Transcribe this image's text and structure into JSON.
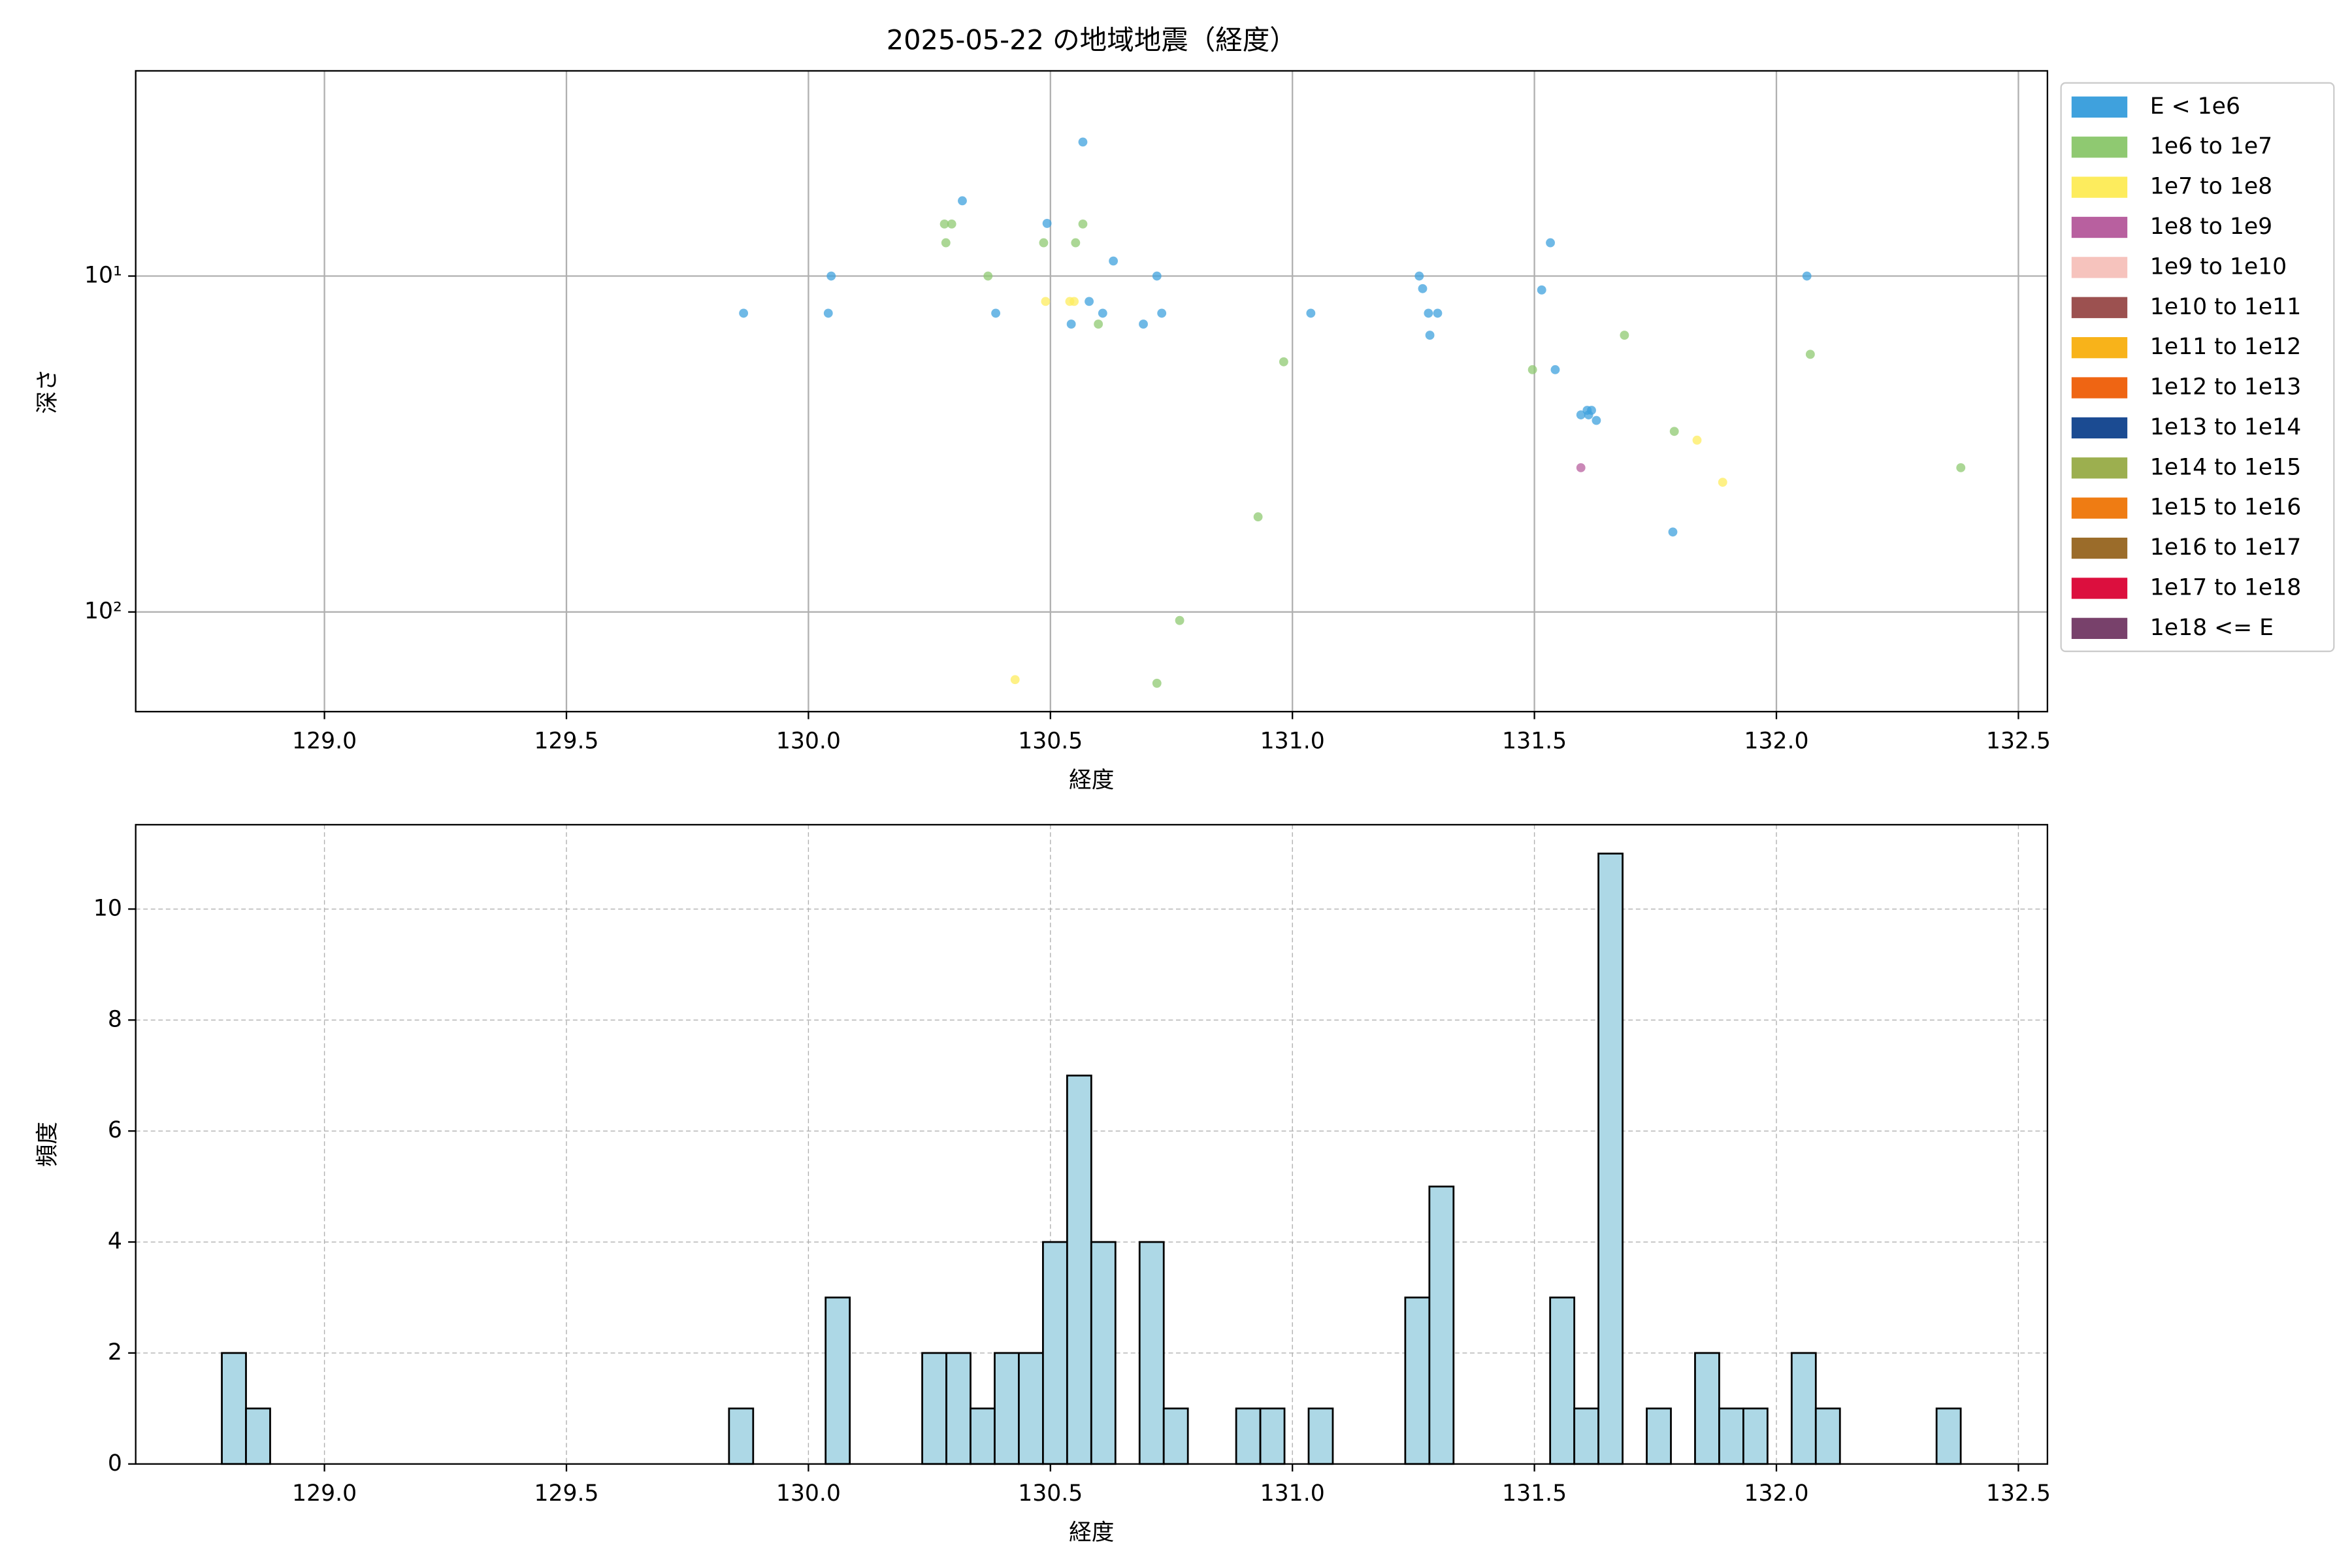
{
  "chart_data": [
    {
      "type": "scatter",
      "title": "2025-05-22 の地域地震（経度）",
      "x_label": "経度",
      "y_label": "深さ",
      "xlim": [
        128.61,
        132.56
      ],
      "ylim": [
        198,
        2.45
      ],
      "y_scale": "log",
      "grid": true,
      "grid_linestyle": "solid",
      "xticks": [
        {
          "value": 129.0,
          "label": "129.0"
        },
        {
          "value": 129.5,
          "label": "129.5"
        },
        {
          "value": 130.0,
          "label": "130.0"
        },
        {
          "value": 130.5,
          "label": "130.5"
        },
        {
          "value": 131.0,
          "label": "131.0"
        },
        {
          "value": 131.5,
          "label": "131.5"
        },
        {
          "value": 132.0,
          "label": "132.0"
        },
        {
          "value": 132.5,
          "label": "132.5"
        }
      ],
      "yticks": [
        {
          "value": 10,
          "label": "10¹"
        },
        {
          "value": 100,
          "label": "10²"
        }
      ],
      "legend": "outside upper right",
      "series": [
        {
          "name": "E < 1e6",
          "color": "#3fa1dd",
          "x": [
            129.866,
            130.041,
            130.047,
            130.318,
            130.387,
            130.493,
            130.567,
            130.543,
            130.58,
            130.608,
            130.63,
            130.692,
            130.72,
            130.73,
            131.038,
            131.262,
            131.269,
            131.281,
            131.3,
            131.284,
            131.515,
            131.533,
            131.543,
            131.596,
            131.609,
            131.618,
            131.612,
            131.628,
            131.786,
            132.063
          ],
          "values": [
            12.9,
            12.9,
            10,
            5.97,
            12.9,
            6.97,
            3.99,
            13.9,
            11.9,
            12.9,
            9.02,
            13.9,
            10,
            12.9,
            12.9,
            10,
            10.9,
            12.9,
            12.9,
            15.0,
            11.0,
            7.96,
            19.0,
            25.9,
            25.1,
            25.1,
            25.9,
            26.9,
            57.8,
            10
          ]
        },
        {
          "name": "1e6 to 1e7",
          "color": "#8fc971",
          "x": [
            130.281,
            130.296,
            130.284,
            130.371,
            130.486,
            130.552,
            130.567,
            130.599,
            130.982,
            130.767,
            130.72,
            130.929,
            131.496,
            131.686,
            131.789,
            132.07,
            132.381
          ],
          "values": [
            7.0,
            7.0,
            7.96,
            10,
            7.96,
            7.96,
            7.0,
            13.9,
            18.0,
            106,
            163,
            52.1,
            19.0,
            15.0,
            29.0,
            17.1,
            37.2
          ]
        },
        {
          "name": "1e7 to 1e8",
          "color": "#fdec5d",
          "x": [
            130.49,
            130.54,
            130.549,
            130.427,
            131.836,
            131.889
          ],
          "values": [
            11.9,
            11.9,
            11.9,
            159,
            30.8,
            41.1
          ]
        },
        {
          "name": "1e8 to 1e9",
          "color": "#b8609f",
          "x": [
            131.596
          ],
          "values": [
            37.2
          ]
        },
        {
          "name": "1e9 to 1e10",
          "color": "#f6c3bd",
          "x": [],
          "values": []
        },
        {
          "name": "1e10 to 1e11",
          "color": "#9c5150",
          "x": [],
          "values": []
        },
        {
          "name": "1e11 to 1e12",
          "color": "#f8b31a",
          "x": [],
          "values": []
        },
        {
          "name": "1e12 to 1e13",
          "color": "#ef6513",
          "x": [],
          "values": []
        },
        {
          "name": "1e13 to 1e14",
          "color": "#1b4b92",
          "x": [],
          "values": []
        },
        {
          "name": "1e14 to 1e15",
          "color": "#9caf4f",
          "x": [],
          "values": []
        },
        {
          "name": "1e15 to 1e16",
          "color": "#ef7c13",
          "x": [],
          "values": []
        },
        {
          "name": "1e16 to 1e17",
          "color": "#9b6c2a",
          "x": [],
          "values": []
        },
        {
          "name": "1e17 to 1e18",
          "color": "#dc0f3e",
          "x": [],
          "values": []
        },
        {
          "name": "1e18 <= E",
          "color": "#78416b",
          "x": [],
          "values": []
        }
      ]
    },
    {
      "type": "histogram",
      "x_label": "経度",
      "y_label": "頻度",
      "color": "#add8e6",
      "edgecolor": "#000000",
      "xlim": [
        128.61,
        132.56
      ],
      "ylim": [
        0,
        11.52
      ],
      "grid": true,
      "grid_linestyle": "dashed",
      "xticks": [
        {
          "value": 129.0,
          "label": "129.0"
        },
        {
          "value": 129.5,
          "label": "129.5"
        },
        {
          "value": 130.0,
          "label": "130.0"
        },
        {
          "value": 130.5,
          "label": "130.5"
        },
        {
          "value": 131.0,
          "label": "131.0"
        },
        {
          "value": 131.5,
          "label": "131.5"
        },
        {
          "value": 132.0,
          "label": "132.0"
        },
        {
          "value": 132.5,
          "label": "132.5"
        }
      ],
      "yticks": [
        0,
        2,
        4,
        6,
        8,
        10
      ],
      "bins": [
        128.788,
        128.8379,
        128.8878,
        128.9377,
        128.9876,
        129.0375,
        129.0874,
        129.1373,
        129.1872,
        129.2371,
        129.287,
        129.3369,
        129.3868,
        129.4367,
        129.4866,
        129.5365,
        129.5864,
        129.6363,
        129.6862,
        129.7361,
        129.786,
        129.8359,
        129.8858,
        129.9357,
        129.9856,
        130.0355,
        130.0854,
        130.1353,
        130.1852,
        130.2351,
        130.285,
        130.3349,
        130.3848,
        130.4347,
        130.4846,
        130.5345,
        130.5844,
        130.6343,
        130.6842,
        130.7341,
        130.784,
        130.8339,
        130.8838,
        130.9337,
        130.9836,
        131.0335,
        131.0834,
        131.1333,
        131.1832,
        131.2331,
        131.283,
        131.3329,
        131.3828,
        131.4327,
        131.4826,
        131.5325,
        131.5824,
        131.6323,
        131.6822,
        131.7321,
        131.782,
        131.8319,
        131.8818,
        131.9317,
        131.9816,
        132.0315,
        132.0814,
        132.1313,
        132.1812,
        132.2311,
        132.281,
        132.3309,
        132.3808
      ],
      "values": [
        2,
        1,
        0,
        0,
        0,
        0,
        0,
        0,
        0,
        0,
        0,
        0,
        0,
        0,
        0,
        0,
        0,
        0,
        0,
        0,
        0,
        1,
        0,
        0,
        0,
        3,
        0,
        0,
        0,
        2,
        2,
        1,
        2,
        2,
        4,
        7,
        4,
        0,
        4,
        1,
        0,
        0,
        1,
        1,
        0,
        1,
        0,
        0,
        0,
        3,
        5,
        0,
        0,
        0,
        0,
        3,
        1,
        11,
        0,
        1,
        0,
        2,
        1,
        1,
        0,
        2,
        1,
        0,
        0,
        0,
        0,
        1
      ]
    }
  ]
}
